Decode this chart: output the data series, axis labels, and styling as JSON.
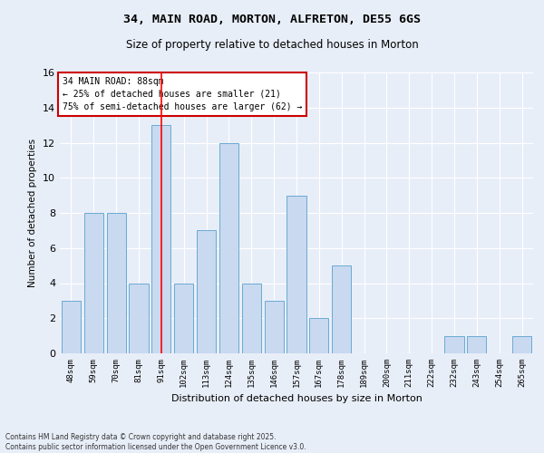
{
  "title1": "34, MAIN ROAD, MORTON, ALFRETON, DE55 6GS",
  "title2": "Size of property relative to detached houses in Morton",
  "xlabel": "Distribution of detached houses by size in Morton",
  "ylabel": "Number of detached properties",
  "categories": [
    "48sqm",
    "59sqm",
    "70sqm",
    "81sqm",
    "91sqm",
    "102sqm",
    "113sqm",
    "124sqm",
    "135sqm",
    "146sqm",
    "157sqm",
    "167sqm",
    "178sqm",
    "189sqm",
    "200sqm",
    "211sqm",
    "222sqm",
    "232sqm",
    "243sqm",
    "254sqm",
    "265sqm"
  ],
  "values": [
    3,
    8,
    8,
    4,
    13,
    4,
    7,
    12,
    4,
    3,
    9,
    2,
    5,
    0,
    0,
    0,
    0,
    1,
    1,
    0,
    1
  ],
  "bar_color": "#c9d9ef",
  "bar_edge_color": "#6aaad4",
  "red_line_x": 4.5,
  "ylim": [
    0,
    16
  ],
  "yticks": [
    0,
    2,
    4,
    6,
    8,
    10,
    12,
    14,
    16
  ],
  "annotation_title": "34 MAIN ROAD: 88sqm",
  "annotation_line1": "← 25% of detached houses are smaller (21)",
  "annotation_line2": "75% of semi-detached houses are larger (62) →",
  "annotation_box_color": "#ffffff",
  "annotation_box_edge": "#cc0000",
  "footer1": "Contains HM Land Registry data © Crown copyright and database right 2025.",
  "footer2": "Contains public sector information licensed under the Open Government Licence v3.0.",
  "background_color": "#e8eef8",
  "grid_color": "#ffffff"
}
